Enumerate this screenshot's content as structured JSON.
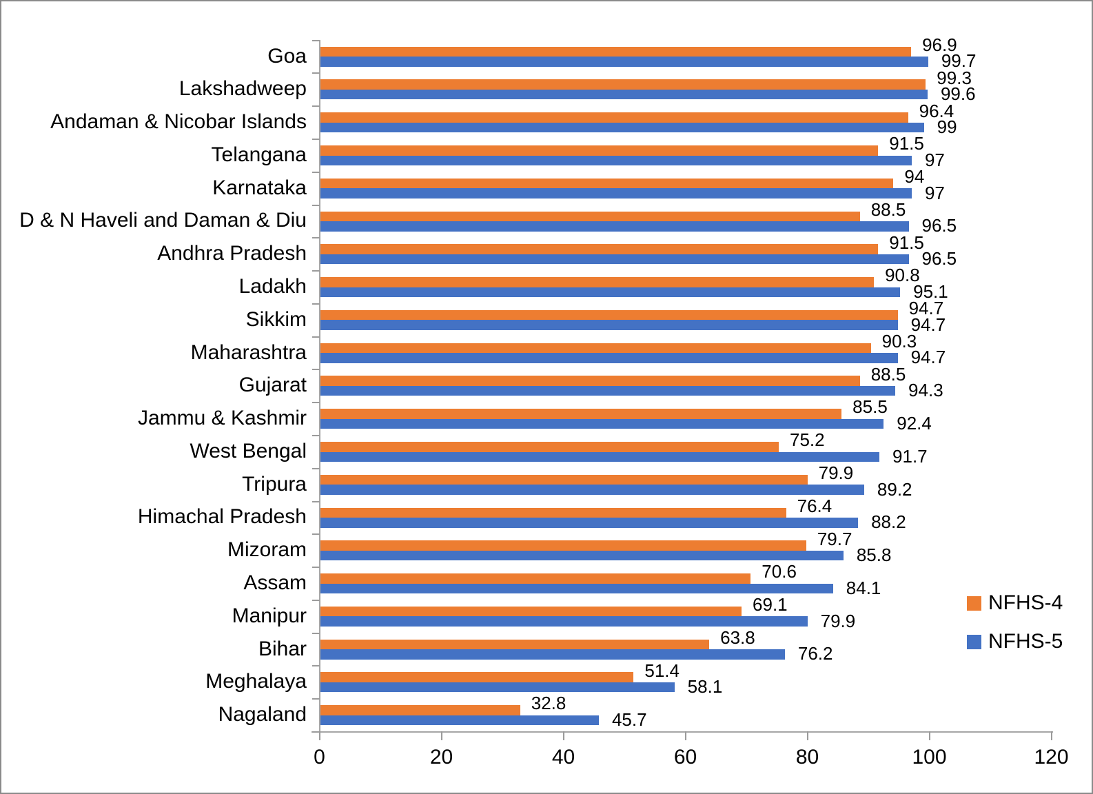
{
  "chart_data": {
    "type": "bar",
    "orientation": "horizontal",
    "title": "",
    "xlabel": "",
    "ylabel": "",
    "xlim": [
      0,
      120
    ],
    "x_ticks": [
      0,
      20,
      40,
      60,
      80,
      100,
      120
    ],
    "grid": false,
    "legend_position": "right",
    "categories": [
      "Goa",
      "Lakshadweep",
      "Andaman & Nicobar Islands",
      "Telangana",
      "Karnataka",
      "D & N Haveli and Daman & Diu",
      "Andhra Pradesh",
      "Ladakh",
      "Sikkim",
      "Maharashtra",
      "Gujarat",
      "Jammu & Kashmir",
      "West Bengal",
      "Tripura",
      "Himachal Pradesh",
      "Mizoram",
      "Assam",
      "Manipur",
      "Bihar",
      "Meghalaya",
      "Nagaland"
    ],
    "series": [
      {
        "name": "NFHS-4",
        "color": "#ED7D31",
        "values": [
          96.9,
          99.3,
          96.4,
          91.5,
          94,
          88.5,
          91.5,
          90.8,
          94.7,
          90.3,
          88.5,
          85.5,
          75.2,
          79.9,
          76.4,
          79.7,
          70.6,
          69.1,
          63.8,
          51.4,
          32.8
        ],
        "labels": [
          "96.9",
          "99.3",
          "96.4",
          "91.5",
          "94",
          "88.5",
          "91.5",
          "90.8",
          "94.7",
          "90.3",
          "88.5",
          "85.5",
          "75.2",
          "79.9",
          "76.4",
          "79.7",
          "70.6",
          "69.1",
          "63.8",
          "51.4",
          "32.8"
        ]
      },
      {
        "name": "NFHS-5",
        "color": "#4472C4",
        "values": [
          99.7,
          99.6,
          99,
          97,
          97,
          96.5,
          96.5,
          95.1,
          94.7,
          94.7,
          94.3,
          92.4,
          91.7,
          89.2,
          88.2,
          85.8,
          84.1,
          79.9,
          76.2,
          58.1,
          45.7
        ],
        "labels": [
          "99.7",
          "99.6",
          "99",
          "97",
          "97",
          "96.5",
          "96.5",
          "95.1",
          "94.7",
          "94.7",
          "94.3",
          "92.4",
          "91.7",
          "89.2",
          "88.2",
          "85.8",
          "84.1",
          "79.9",
          "76.2",
          "58.1",
          "45.7"
        ]
      }
    ],
    "axis_color": "#a6a6a6",
    "text_color": "#000000"
  },
  "legend": {
    "items": [
      {
        "label": "NFHS-4",
        "color": "#ED7D31"
      },
      {
        "label": "NFHS-5",
        "color": "#4472C4"
      }
    ]
  }
}
